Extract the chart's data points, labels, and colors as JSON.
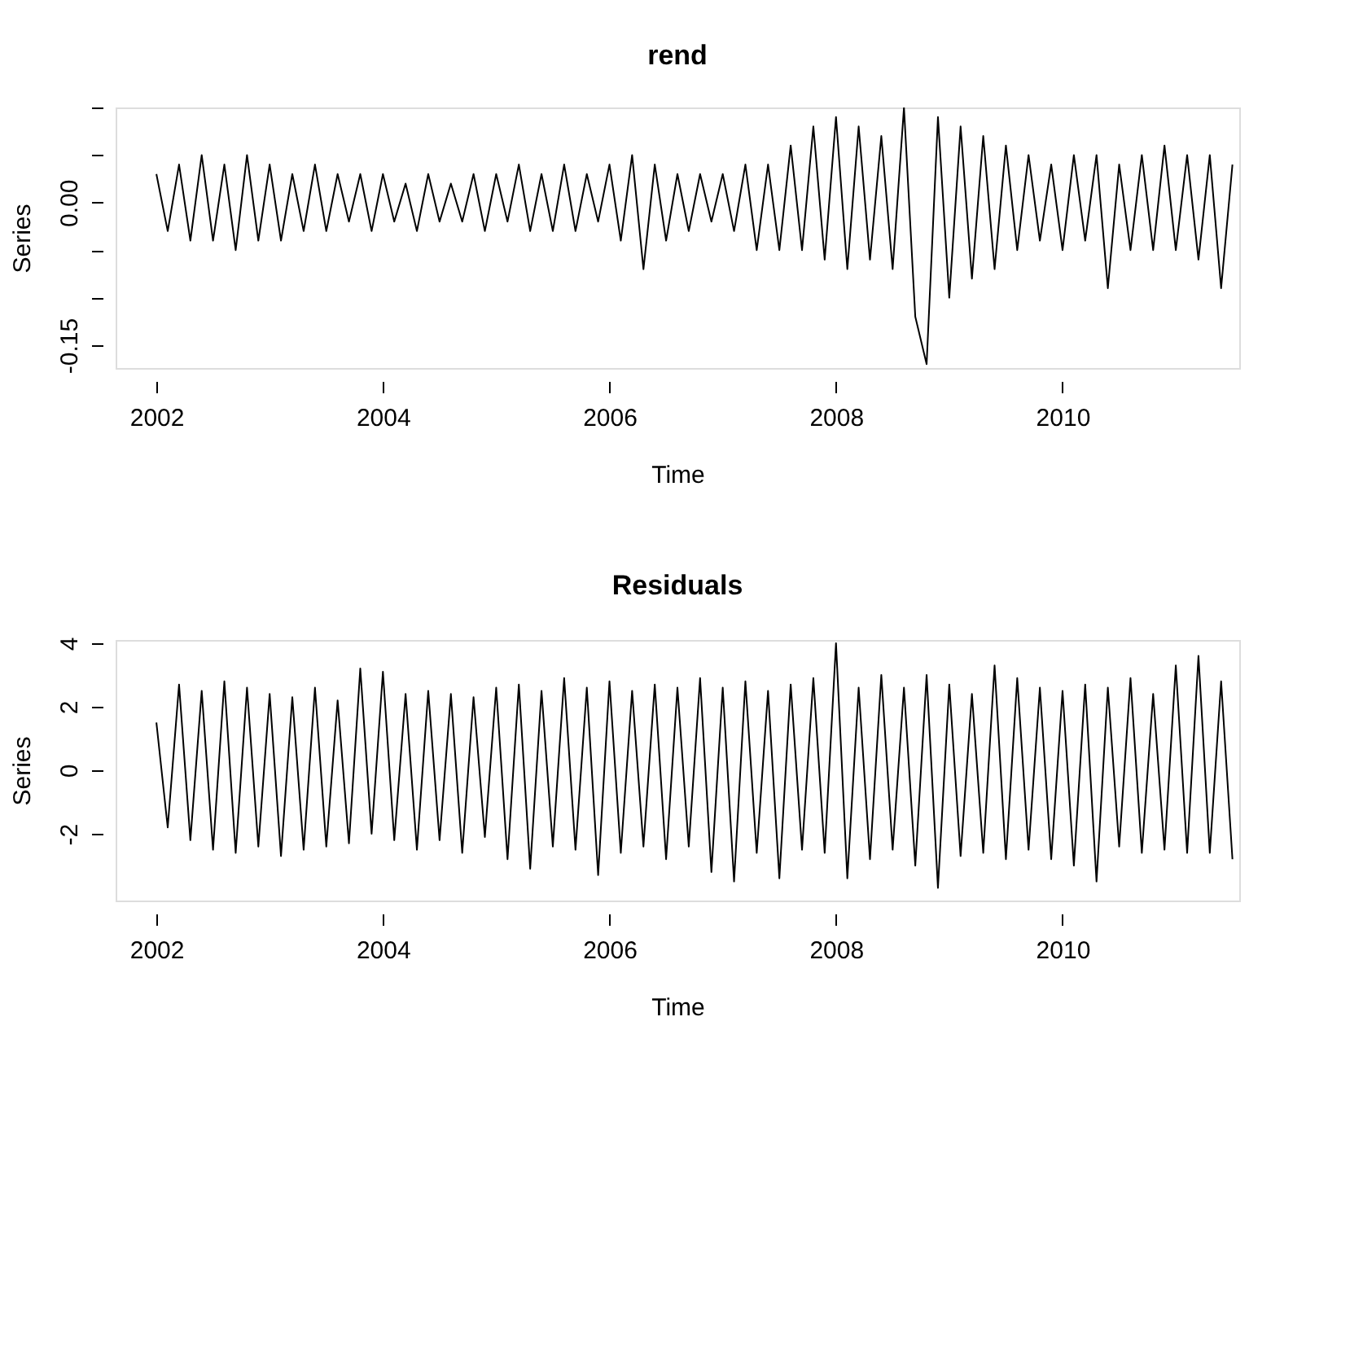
{
  "chart_data": [
    {
      "type": "line",
      "title": "rend",
      "xlabel": "Time",
      "ylabel": "Series",
      "xlim": [
        2001.64,
        2011.56
      ],
      "xticks": [
        2002,
        2004,
        2006,
        2008,
        2010
      ],
      "ylim": [
        -0.174,
        0.1
      ],
      "yticks": [
        {
          "value": -0.15,
          "label": "-0.15"
        },
        {
          "value": -0.1,
          "label": null
        },
        {
          "value": -0.05,
          "label": null
        },
        {
          "value": 0,
          "label": "0.00"
        },
        {
          "value": 0.05,
          "label": null
        },
        {
          "value": 0.1,
          "label": null
        }
      ],
      "grid": false,
      "marker": "none",
      "line_style": "solid",
      "x": [
        2002.0,
        2002.1,
        2002.2,
        2002.3,
        2002.4,
        2002.5,
        2002.6,
        2002.7,
        2002.8,
        2002.9,
        2003.0,
        2003.1,
        2003.2,
        2003.3,
        2003.4,
        2003.5,
        2003.6,
        2003.7,
        2003.8,
        2003.9,
        2004.0,
        2004.1,
        2004.2,
        2004.3,
        2004.4,
        2004.5,
        2004.6,
        2004.7,
        2004.8,
        2004.9,
        2005.0,
        2005.1,
        2005.2,
        2005.3,
        2005.4,
        2005.5,
        2005.6,
        2005.7,
        2005.8,
        2005.9,
        2006.0,
        2006.1,
        2006.2,
        2006.3,
        2006.4,
        2006.5,
        2006.6,
        2006.7,
        2006.8,
        2006.9,
        2007.0,
        2007.1,
        2007.2,
        2007.3,
        2007.4,
        2007.5,
        2007.6,
        2007.7,
        2007.8,
        2007.9,
        2008.0,
        2008.1,
        2008.2,
        2008.3,
        2008.4,
        2008.5,
        2008.6,
        2008.7,
        2008.8,
        2008.9,
        2009.0,
        2009.1,
        2009.2,
        2009.3,
        2009.4,
        2009.5,
        2009.6,
        2009.7,
        2009.8,
        2009.9,
        2010.0,
        2010.1,
        2010.2,
        2010.3,
        2010.4,
        2010.5,
        2010.6,
        2010.7,
        2010.8,
        2010.9,
        2011.0,
        2011.1,
        2011.2,
        2011.3,
        2011.4,
        2011.5
      ],
      "series": [
        {
          "color": "#000000",
          "values": [
            0.03,
            -0.03,
            0.04,
            -0.04,
            0.05,
            -0.04,
            0.04,
            -0.05,
            0.05,
            -0.04,
            0.04,
            -0.04,
            0.03,
            -0.03,
            0.04,
            -0.03,
            0.03,
            -0.02,
            0.03,
            -0.03,
            0.03,
            -0.02,
            0.02,
            -0.03,
            0.03,
            -0.02,
            0.02,
            -0.02,
            0.03,
            -0.03,
            0.03,
            -0.02,
            0.04,
            -0.03,
            0.03,
            -0.03,
            0.04,
            -0.03,
            0.03,
            -0.02,
            0.04,
            -0.04,
            0.05,
            -0.07,
            0.04,
            -0.04,
            0.03,
            -0.03,
            0.03,
            -0.02,
            0.03,
            -0.03,
            0.04,
            -0.05,
            0.04,
            -0.05,
            0.06,
            -0.05,
            0.08,
            -0.06,
            0.09,
            -0.07,
            0.08,
            -0.06,
            0.07,
            -0.07,
            0.1,
            -0.12,
            -0.17,
            0.09,
            -0.1,
            0.08,
            -0.08,
            0.07,
            -0.07,
            0.06,
            -0.05,
            0.05,
            -0.04,
            0.04,
            -0.05,
            0.05,
            -0.04,
            0.05,
            -0.09,
            0.04,
            -0.05,
            0.05,
            -0.05,
            0.06,
            -0.05,
            0.05,
            -0.06,
            0.05,
            -0.09,
            0.04
          ]
        }
      ]
    },
    {
      "type": "line",
      "title": "Residuals",
      "xlabel": "Time",
      "ylabel": "Series",
      "xlim": [
        2001.64,
        2011.56
      ],
      "xticks": [
        2002,
        2004,
        2006,
        2008,
        2010
      ],
      "ylim": [
        -4.1,
        4.1
      ],
      "yticks": [
        -2,
        0,
        2,
        4
      ],
      "grid": false,
      "marker": "none",
      "line_style": "solid",
      "x": [
        2002.0,
        2002.1,
        2002.2,
        2002.3,
        2002.4,
        2002.5,
        2002.6,
        2002.7,
        2002.8,
        2002.9,
        2003.0,
        2003.1,
        2003.2,
        2003.3,
        2003.4,
        2003.5,
        2003.6,
        2003.7,
        2003.8,
        2003.9,
        2004.0,
        2004.1,
        2004.2,
        2004.3,
        2004.4,
        2004.5,
        2004.6,
        2004.7,
        2004.8,
        2004.9,
        2005.0,
        2005.1,
        2005.2,
        2005.3,
        2005.4,
        2005.5,
        2005.6,
        2005.7,
        2005.8,
        2005.9,
        2006.0,
        2006.1,
        2006.2,
        2006.3,
        2006.4,
        2006.5,
        2006.6,
        2006.7,
        2006.8,
        2006.9,
        2007.0,
        2007.1,
        2007.2,
        2007.3,
        2007.4,
        2007.5,
        2007.6,
        2007.7,
        2007.8,
        2007.9,
        2008.0,
        2008.1,
        2008.2,
        2008.3,
        2008.4,
        2008.5,
        2008.6,
        2008.7,
        2008.8,
        2008.9,
        2009.0,
        2009.1,
        2009.2,
        2009.3,
        2009.4,
        2009.5,
        2009.6,
        2009.7,
        2009.8,
        2009.9,
        2010.0,
        2010.1,
        2010.2,
        2010.3,
        2010.4,
        2010.5,
        2010.6,
        2010.7,
        2010.8,
        2010.9,
        2011.0,
        2011.1,
        2011.2,
        2011.3,
        2011.4,
        2011.5
      ],
      "series": [
        {
          "color": "#000000",
          "values": [
            1.5,
            -1.8,
            2.7,
            -2.2,
            2.5,
            -2.5,
            2.8,
            -2.6,
            2.6,
            -2.4,
            2.4,
            -2.7,
            2.3,
            -2.5,
            2.6,
            -2.4,
            2.2,
            -2.3,
            3.2,
            -2.0,
            3.1,
            -2.2,
            2.4,
            -2.5,
            2.5,
            -2.2,
            2.4,
            -2.6,
            2.3,
            -2.1,
            2.6,
            -2.8,
            2.7,
            -3.1,
            2.5,
            -2.4,
            2.9,
            -2.5,
            2.6,
            -3.3,
            2.8,
            -2.6,
            2.5,
            -2.4,
            2.7,
            -2.8,
            2.6,
            -2.4,
            2.9,
            -3.2,
            2.6,
            -3.5,
            2.8,
            -2.6,
            2.5,
            -3.4,
            2.7,
            -2.5,
            2.9,
            -2.6,
            4.0,
            -3.4,
            2.6,
            -2.8,
            3.0,
            -2.5,
            2.6,
            -3.0,
            3.0,
            -3.7,
            2.7,
            -2.7,
            2.4,
            -2.6,
            3.3,
            -2.8,
            2.9,
            -2.5,
            2.6,
            -2.8,
            2.5,
            -3.0,
            2.7,
            -3.5,
            2.6,
            -2.4,
            2.9,
            -2.6,
            2.4,
            -2.5,
            3.3,
            -2.6,
            3.6,
            -2.6,
            2.8,
            -2.8
          ]
        }
      ]
    }
  ]
}
